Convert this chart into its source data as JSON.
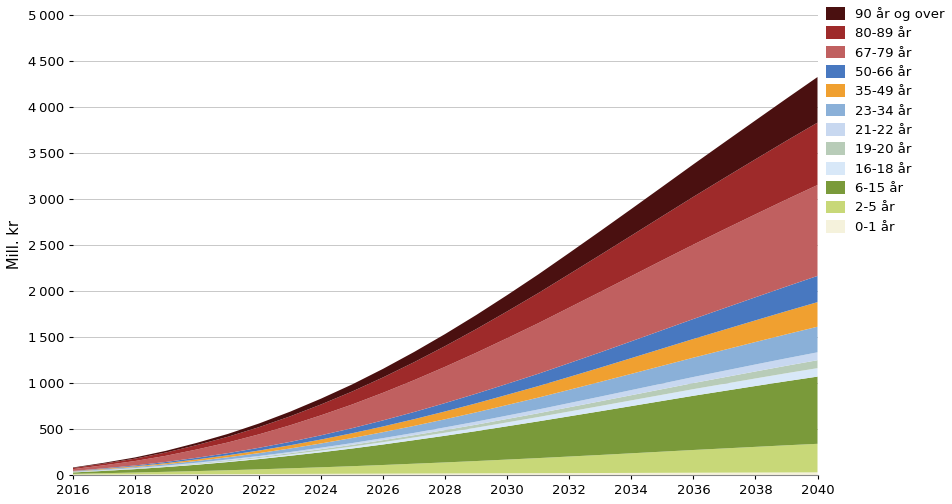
{
  "years": [
    2016,
    2017,
    2018,
    2019,
    2020,
    2021,
    2022,
    2023,
    2024,
    2025,
    2026,
    2027,
    2028,
    2029,
    2030,
    2031,
    2032,
    2033,
    2034,
    2035,
    2036,
    2037,
    2038,
    2039,
    2040
  ],
  "series": {
    "0-1 år": [
      5,
      6,
      7,
      8,
      9,
      10,
      11,
      12,
      13,
      14,
      15,
      16,
      17,
      18,
      19,
      20,
      21,
      22,
      23,
      24,
      25,
      26,
      27,
      28,
      29
    ],
    "2-5 år": [
      8,
      14,
      20,
      27,
      34,
      42,
      51,
      61,
      71,
      82,
      94,
      107,
      120,
      134,
      149,
      164,
      180,
      196,
      213,
      230,
      247,
      263,
      279,
      295,
      310
    ],
    "6-15 år": [
      15,
      25,
      37,
      52,
      69,
      89,
      111,
      136,
      163,
      192,
      223,
      256,
      290,
      325,
      362,
      399,
      437,
      475,
      513,
      551,
      589,
      625,
      661,
      696,
      730
    ],
    "16-18 år": [
      2,
      3,
      4,
      6,
      8,
      10,
      12,
      15,
      18,
      21,
      25,
      29,
      33,
      37,
      42,
      47,
      52,
      57,
      62,
      67,
      72,
      77,
      82,
      87,
      92
    ],
    "19-20 år": [
      2,
      3,
      4,
      5,
      7,
      9,
      11,
      13,
      16,
      19,
      22,
      25,
      29,
      33,
      37,
      41,
      46,
      51,
      56,
      61,
      66,
      71,
      76,
      81,
      86
    ],
    "21-22 år": [
      2,
      3,
      4,
      5,
      7,
      9,
      11,
      13,
      16,
      19,
      22,
      25,
      29,
      33,
      37,
      41,
      46,
      51,
      56,
      61,
      66,
      71,
      76,
      81,
      86
    ],
    "23-34 år": [
      4,
      7,
      10,
      14,
      19,
      24,
      31,
      38,
      46,
      55,
      65,
      76,
      88,
      101,
      115,
      129,
      144,
      160,
      176,
      193,
      210,
      227,
      244,
      261,
      278
    ],
    "35-49 år": [
      3,
      6,
      9,
      12,
      17,
      22,
      28,
      35,
      43,
      52,
      62,
      73,
      85,
      98,
      111,
      125,
      140,
      155,
      171,
      187,
      203,
      219,
      235,
      251,
      267
    ],
    "50-66 år": [
      3,
      6,
      9,
      13,
      18,
      23,
      30,
      37,
      46,
      55,
      66,
      78,
      91,
      105,
      119,
      134,
      150,
      166,
      183,
      200,
      217,
      234,
      251,
      268,
      285
    ],
    "67-79 år": [
      20,
      33,
      48,
      67,
      90,
      116,
      146,
      180,
      217,
      257,
      300,
      346,
      394,
      444,
      496,
      549,
      603,
      656,
      708,
      759,
      808,
      856,
      901,
      945,
      987
    ],
    "80-89 år": [
      12,
      18,
      26,
      36,
      48,
      62,
      78,
      97,
      118,
      141,
      167,
      195,
      225,
      257,
      291,
      327,
      364,
      402,
      440,
      479,
      519,
      558,
      598,
      638,
      678
    ],
    "90 år og over": [
      6,
      9,
      13,
      18,
      24,
      31,
      40,
      51,
      63,
      77,
      93,
      111,
      131,
      153,
      177,
      203,
      230,
      259,
      289,
      320,
      353,
      387,
      422,
      458,
      495
    ]
  },
  "colors": {
    "0-1 år": "#f5f2dc",
    "2-5 år": "#c8d878",
    "6-15 år": "#7a9a3a",
    "16-18 år": "#d8e8f8",
    "19-20 år": "#b8ccb8",
    "21-22 år": "#c8d8f0",
    "23-34 år": "#8ab0d8",
    "35-49 år": "#f0a030",
    "50-66 år": "#4878c0",
    "67-79 år": "#c06060",
    "80-89 år": "#9e2a2a",
    "90 år og over": "#4a1010"
  },
  "ylabel": "Mill. kr",
  "ylim": [
    0,
    5000
  ],
  "yticks": [
    0,
    500,
    1000,
    1500,
    2000,
    2500,
    3000,
    3500,
    4000,
    4500,
    5000
  ],
  "xticks": [
    2016,
    2018,
    2020,
    2022,
    2024,
    2026,
    2028,
    2030,
    2032,
    2034,
    2036,
    2038,
    2040
  ],
  "stack_order": [
    "0-1 år",
    "2-5 år",
    "6-15 år",
    "16-18 år",
    "19-20 år",
    "21-22 år",
    "23-34 år",
    "35-49 år",
    "50-66 år",
    "67-79 år",
    "80-89 år",
    "90 år og over"
  ]
}
